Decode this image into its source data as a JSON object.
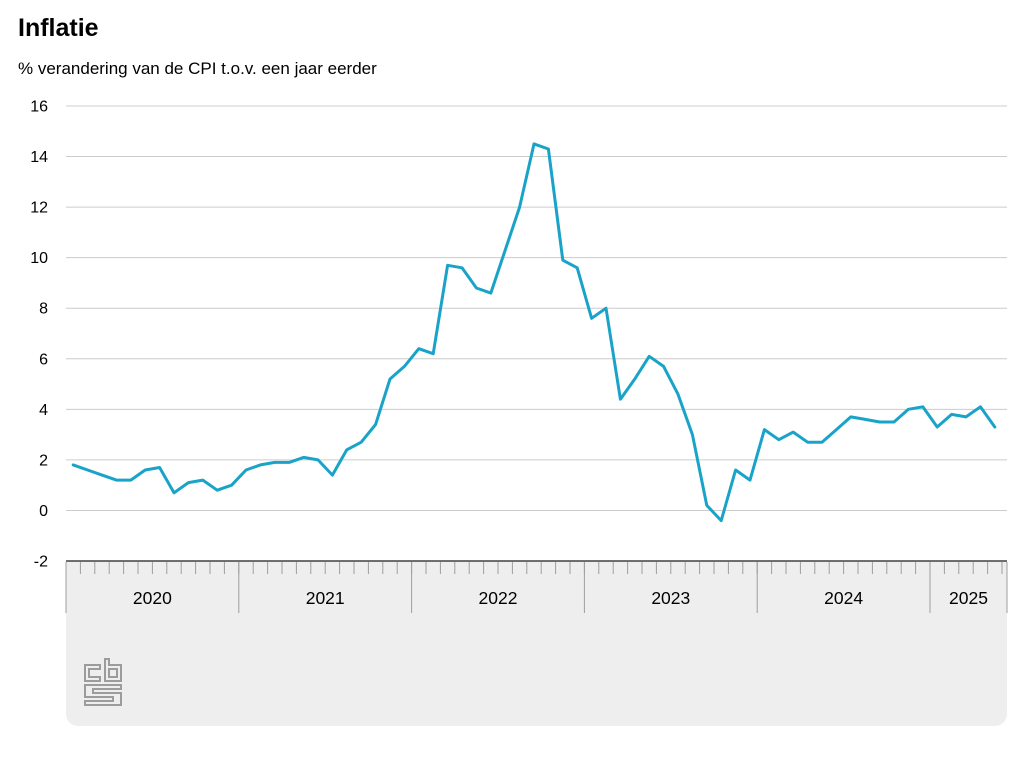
{
  "title": "Inflatie",
  "subtitle": "% verandering van de CPI t.o.v. een jaar eerder",
  "colors": {
    "line": "#1aa3c8",
    "gridline": "#cccccc",
    "axis_line": "#404040",
    "tick": "#9e9e9e",
    "band_background": "#eeeeee",
    "text": "#000000",
    "logo": "#9c9c9c"
  },
  "y_axis": {
    "tick_labels": [
      "16",
      "14",
      "12",
      "10",
      "8",
      "6",
      "4",
      "2",
      "0",
      "-2"
    ],
    "tick_values": [
      16,
      14,
      12,
      10,
      8,
      6,
      4,
      2,
      0,
      -2
    ],
    "min": -2,
    "max": 16
  },
  "x_axis": {
    "year_labels": [
      "2020",
      "2021",
      "2022",
      "2023",
      "2024",
      "2025"
    ],
    "minor_ticks": "monthly"
  },
  "logo_name": "cbs-logo",
  "chart_data": {
    "type": "line",
    "title": "Inflatie",
    "subtitle": "% verandering van de CPI t.o.v. een jaar eerder",
    "unit": "%",
    "ylabel": "",
    "xlabel": "",
    "ylim": [
      -2,
      16
    ],
    "grid": "horizontal",
    "legend": "none",
    "x": [
      "2020-01",
      "2020-02",
      "2020-03",
      "2020-04",
      "2020-05",
      "2020-06",
      "2020-07",
      "2020-08",
      "2020-09",
      "2020-10",
      "2020-11",
      "2020-12",
      "2021-01",
      "2021-02",
      "2021-03",
      "2021-04",
      "2021-05",
      "2021-06",
      "2021-07",
      "2021-08",
      "2021-09",
      "2021-10",
      "2021-11",
      "2021-12",
      "2022-01",
      "2022-02",
      "2022-03",
      "2022-04",
      "2022-05",
      "2022-06",
      "2022-07",
      "2022-08",
      "2022-09",
      "2022-10",
      "2022-11",
      "2022-12",
      "2023-01",
      "2023-02",
      "2023-03",
      "2023-04",
      "2023-05",
      "2023-06",
      "2023-07",
      "2023-08",
      "2023-09",
      "2023-10",
      "2023-11",
      "2023-12",
      "2024-01",
      "2024-02",
      "2024-03",
      "2024-04",
      "2024-05",
      "2024-06",
      "2024-07",
      "2024-08",
      "2024-09",
      "2024-10",
      "2024-11",
      "2024-12",
      "2025-01",
      "2025-02",
      "2025-03",
      "2025-04",
      "2025-05"
    ],
    "values": [
      1.8,
      1.6,
      1.4,
      1.2,
      1.2,
      1.6,
      1.7,
      0.7,
      1.1,
      1.2,
      0.8,
      1.0,
      1.6,
      1.8,
      1.9,
      1.9,
      2.1,
      2.0,
      1.4,
      2.4,
      2.7,
      3.4,
      5.2,
      5.7,
      6.4,
      6.2,
      9.7,
      9.6,
      8.8,
      8.6,
      10.3,
      12.0,
      14.5,
      14.3,
      9.9,
      9.6,
      7.6,
      8.0,
      4.4,
      5.2,
      6.1,
      5.7,
      4.6,
      3.0,
      0.2,
      -0.4,
      1.6,
      1.2,
      3.2,
      2.8,
      3.1,
      2.7,
      2.7,
      3.2,
      3.7,
      3.6,
      3.5,
      3.5,
      4.0,
      4.1,
      3.3,
      3.8,
      3.7,
      4.1,
      3.3
    ]
  }
}
